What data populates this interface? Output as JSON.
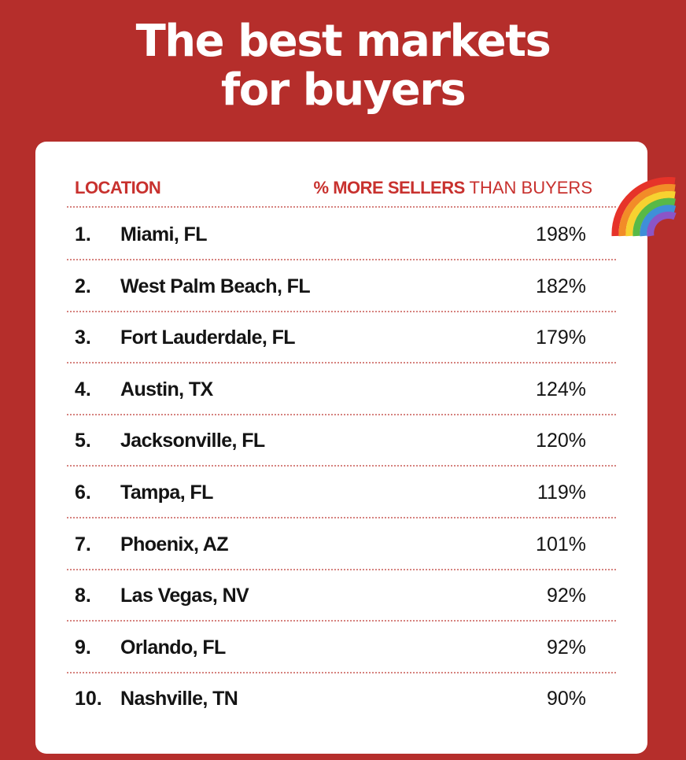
{
  "title": {
    "line1": "The best markets",
    "line2": "for buyers"
  },
  "chart_data": {
    "type": "table",
    "columns": {
      "location": "LOCATION",
      "metric_bold": "% MORE SELLERS",
      "metric_rest": "THAN BUYERS"
    },
    "rows": [
      {
        "rank": "1.",
        "location": "Miami, FL",
        "value": "198%"
      },
      {
        "rank": "2.",
        "location": "West Palm Beach, FL",
        "value": "182%"
      },
      {
        "rank": "3.",
        "location": "Fort Lauderdale, FL",
        "value": "179%"
      },
      {
        "rank": "4.",
        "location": "Austin, TX",
        "value": "124%"
      },
      {
        "rank": "5.",
        "location": "Jacksonville, FL",
        "value": "120%"
      },
      {
        "rank": "6.",
        "location": "Tampa, FL",
        "value": "119%"
      },
      {
        "rank": "7.",
        "location": "Phoenix, AZ",
        "value": "101%"
      },
      {
        "rank": "8.",
        "location": "Las Vegas, NV",
        "value": "92%"
      },
      {
        "rank": "9.",
        "location": "Orlando, FL",
        "value": "92%"
      },
      {
        "rank": "10.",
        "location": "Nashville, TN",
        "value": "90%"
      }
    ]
  },
  "decoration": {
    "icon": "rainbow-icon"
  },
  "colors": {
    "background": "#b52e2b",
    "accent": "#c8312e",
    "card": "#ffffff",
    "text": "#141414"
  }
}
